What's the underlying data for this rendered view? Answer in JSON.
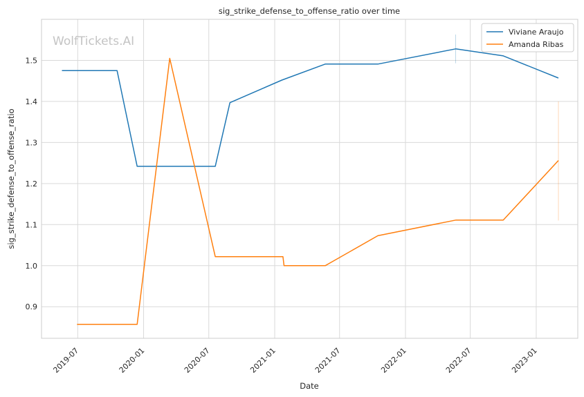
{
  "chart_data": {
    "type": "line",
    "title": "sig_strike_defense_to_offense_ratio over time",
    "xlabel": "Date",
    "ylabel": "sig_strike_defense_to_offense_ratio",
    "watermark": "WolfTickets.AI",
    "x_range": [
      "2019-03-22",
      "2023-04-27"
    ],
    "ylim": [
      0.823,
      1.6
    ],
    "x_ticks": [
      "2019-07",
      "2020-01",
      "2020-07",
      "2021-01",
      "2021-07",
      "2022-01",
      "2022-07",
      "2023-01"
    ],
    "y_ticks": [
      0.9,
      1.0,
      1.1,
      1.2,
      1.3,
      1.4,
      1.5
    ],
    "grid": true,
    "legend_position": "top-right",
    "series": [
      {
        "name": "Viviane Araujo",
        "color": "#1f77b4",
        "points": [
          {
            "x": "2019-05-18",
            "y": 1.475
          },
          {
            "x": "2019-10-19",
            "y": 1.475
          },
          {
            "x": "2019-12-14",
            "y": 1.242
          },
          {
            "x": "2020-07-19",
            "y": 1.242
          },
          {
            "x": "2020-08-29",
            "y": 1.397
          },
          {
            "x": "2021-01-21",
            "y": 1.452
          },
          {
            "x": "2021-05-22",
            "y": 1.491
          },
          {
            "x": "2021-10-16",
            "y": 1.491
          },
          {
            "x": "2022-05-21",
            "y": 1.528
          },
          {
            "x": "2022-10-01",
            "y": 1.511
          },
          {
            "x": "2023-03-04",
            "y": 1.457
          }
        ],
        "error_bars": [
          {
            "x": "2022-05-21",
            "low": 1.493,
            "high": 1.563
          }
        ]
      },
      {
        "name": "Amanda Ribas",
        "color": "#ff7f0e",
        "points": [
          {
            "x": "2019-06-29",
            "y": 0.857
          },
          {
            "x": "2019-11-16",
            "y": 0.857
          },
          {
            "x": "2019-12-14",
            "y": 0.857
          },
          {
            "x": "2020-03-14",
            "y": 1.505
          },
          {
            "x": "2020-07-19",
            "y": 1.022
          },
          {
            "x": "2021-01-24",
            "y": 1.022
          },
          {
            "x": "2021-01-27",
            "y": 1.0
          },
          {
            "x": "2021-05-22",
            "y": 1.0
          },
          {
            "x": "2021-10-16",
            "y": 1.073
          },
          {
            "x": "2022-05-21",
            "y": 1.111
          },
          {
            "x": "2022-10-01",
            "y": 1.111
          },
          {
            "x": "2023-03-04",
            "y": 1.256
          }
        ],
        "error_bars": [
          {
            "x": "2023-03-04",
            "low": 1.11,
            "high": 1.4
          }
        ]
      }
    ]
  }
}
